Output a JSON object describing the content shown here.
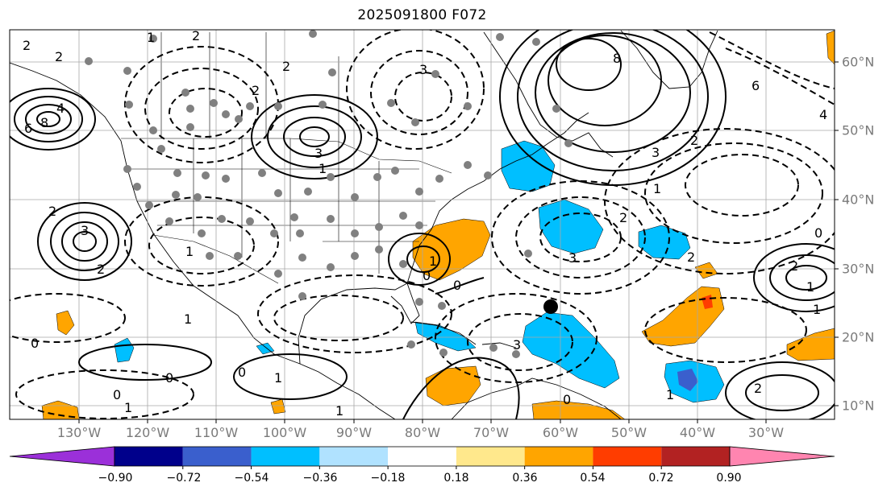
{
  "title": "2025091800 F072",
  "lon_labels": [
    "130°W",
    "120°W",
    "110°W",
    "100°W",
    "90°W",
    "80°W",
    "70°W",
    "60°W",
    "50°W",
    "40°W",
    "30°W"
  ],
  "lat_labels": [
    "60°N",
    "50°N",
    "40°N",
    "30°N",
    "20°N",
    "10°N"
  ],
  "colorbar": {
    "ticks": [
      "−0.90",
      "−0.72",
      "−0.54",
      "−0.36",
      "−0.18",
      "0.18",
      "0.36",
      "0.54",
      "0.72",
      "0.90"
    ],
    "colors": [
      "#9b30d9",
      "#00008b",
      "#3a5fcd",
      "#00bfff",
      "#b0e2ff",
      "#ffffff",
      "#ffe88c",
      "#ffa500",
      "#ff3d00",
      "#b22222",
      "#ff85b0"
    ]
  },
  "contour_labels": [
    "2",
    "2",
    "4",
    "8",
    "6",
    "3",
    "3",
    "2",
    "2",
    "2",
    "1",
    "1",
    "1",
    "3",
    "3",
    "8",
    "6",
    "4",
    "2",
    "1",
    "2",
    "3",
    "0",
    "1",
    "0",
    "2",
    "2",
    "0",
    "1",
    "1",
    "0",
    "0",
    "0",
    "1",
    "0",
    "1",
    "1",
    "1",
    "2",
    "3",
    "0",
    "2",
    "2",
    "1"
  ],
  "marker": "black-dot"
}
